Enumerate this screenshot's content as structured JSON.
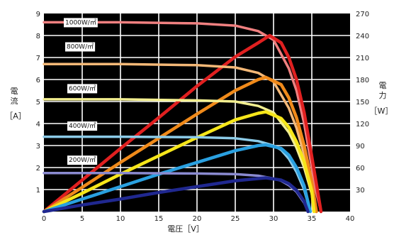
{
  "chart_data": {
    "type": "line",
    "title": "",
    "xlabel": "電圧［V］",
    "ylabel_left": [
      "電",
      "流",
      "［A］"
    ],
    "ylabel_right": [
      "電",
      "力",
      "［W］"
    ],
    "xlim": [
      0,
      40
    ],
    "ylim_left": [
      0,
      9
    ],
    "ylim_right": [
      0,
      270
    ],
    "x_ticks": [
      0,
      5,
      10,
      15,
      20,
      25,
      30,
      35,
      40
    ],
    "y_left_ticks": [
      1,
      2,
      3,
      4,
      5,
      6,
      7,
      8,
      9
    ],
    "y_right_ticks": [
      30,
      60,
      90,
      120,
      150,
      180,
      210,
      240,
      270
    ],
    "grid": true,
    "background": "#000000",
    "irradiance_labels": [
      "1000W/㎡",
      "800W/㎡",
      "600W/㎡",
      "400W/㎡",
      "200W/㎡"
    ],
    "series": [
      {
        "kind": "current",
        "irradiance": "1000W/㎡",
        "color": "#f08080",
        "x": [
          0,
          10,
          20,
          25,
          28,
          30,
          32,
          33,
          34,
          35,
          35.5,
          36.2
        ],
        "y": [
          8.6,
          8.6,
          8.55,
          8.45,
          8.2,
          7.8,
          6.5,
          5.5,
          4.0,
          2.0,
          1.0,
          0
        ]
      },
      {
        "kind": "power",
        "irradiance": "1000W/㎡",
        "color": "#e02020",
        "x": [
          0,
          5,
          10,
          15,
          20,
          25,
          28,
          29.5,
          31,
          32,
          33,
          34,
          35,
          36.2
        ],
        "y": [
          0,
          43,
          86,
          128,
          171,
          211,
          230,
          240,
          230,
          210,
          180,
          135,
          75,
          0
        ]
      },
      {
        "kind": "current",
        "irradiance": "800W/㎡",
        "color": "#f4b877",
        "x": [
          0,
          10,
          20,
          25,
          28,
          30,
          32,
          33,
          34,
          35,
          35.6
        ],
        "y": [
          6.7,
          6.7,
          6.65,
          6.55,
          6.3,
          5.9,
          4.7,
          3.8,
          2.6,
          1.0,
          0
        ]
      },
      {
        "kind": "power",
        "irradiance": "800W/㎡",
        "color": "#f08a1a",
        "x": [
          0,
          5,
          10,
          15,
          20,
          25,
          28,
          29,
          31,
          32,
          33,
          34,
          35,
          35.6
        ],
        "y": [
          0,
          33,
          67,
          100,
          133,
          165,
          180,
          183,
          173,
          155,
          128,
          90,
          40,
          0
        ]
      },
      {
        "kind": "current",
        "irradiance": "600W/㎡",
        "color": "#f3ef90",
        "x": [
          0,
          10,
          20,
          25,
          28,
          30,
          32,
          33,
          34,
          35,
          35.3
        ],
        "y": [
          5.1,
          5.1,
          5.05,
          5.0,
          4.8,
          4.5,
          3.6,
          2.9,
          2.0,
          0.8,
          0
        ]
      },
      {
        "kind": "power",
        "irradiance": "600W/㎡",
        "color": "#f6e61a",
        "x": [
          0,
          5,
          10,
          15,
          20,
          25,
          28,
          29,
          31,
          32,
          33,
          34,
          35,
          35.3
        ],
        "y": [
          0,
          25,
          51,
          76,
          101,
          125,
          134,
          136,
          127,
          115,
          95,
          68,
          28,
          0
        ]
      },
      {
        "kind": "current",
        "irradiance": "400W/㎡",
        "color": "#8ccbe8",
        "x": [
          0,
          10,
          20,
          25,
          28,
          30,
          31,
          32,
          33,
          34,
          34.8
        ],
        "y": [
          3.4,
          3.4,
          3.38,
          3.33,
          3.2,
          3.0,
          2.8,
          2.4,
          1.8,
          1.0,
          0
        ]
      },
      {
        "kind": "power",
        "irradiance": "400W/㎡",
        "color": "#2aa0e0",
        "x": [
          0,
          5,
          10,
          15,
          20,
          25,
          28,
          29,
          31,
          32,
          33,
          34,
          34.8
        ],
        "y": [
          0,
          17,
          34,
          51,
          67,
          83,
          90,
          91,
          86,
          77,
          60,
          35,
          0
        ]
      },
      {
        "kind": "current",
        "irradiance": "200W/㎡",
        "color": "#8a8ad0",
        "x": [
          0,
          10,
          20,
          25,
          28,
          30,
          31,
          32,
          33,
          34,
          34.5
        ],
        "y": [
          1.75,
          1.75,
          1.73,
          1.7,
          1.63,
          1.5,
          1.4,
          1.2,
          0.9,
          0.4,
          0
        ]
      },
      {
        "kind": "power",
        "irradiance": "200W/㎡",
        "color": "#202890",
        "x": [
          0,
          5,
          10,
          15,
          20,
          25,
          28,
          29,
          31,
          32,
          33,
          34,
          34.5
        ],
        "y": [
          0,
          9,
          17,
          26,
          34,
          42,
          45,
          46,
          43,
          38,
          29,
          14,
          0
        ]
      }
    ]
  }
}
